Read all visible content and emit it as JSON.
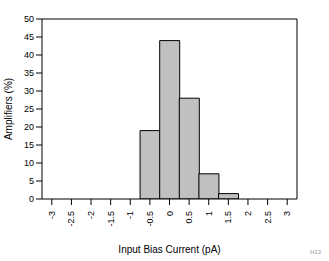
{
  "chart_data": {
    "type": "bar",
    "x_label": "Input Bias Current (pA)",
    "y_label": "Amplifiers (%)",
    "categories": [
      "-3",
      "-2.5",
      "-2",
      "-1.5",
      "-1",
      "-0.5",
      "0",
      "0.5",
      "1",
      "1.5",
      "2",
      "2.5",
      "3"
    ],
    "values": [
      0,
      0,
      0,
      0,
      0,
      19,
      44,
      28,
      7,
      1.5,
      0,
      0,
      0
    ],
    "color": "#c0c0c0",
    "ylim": [
      0,
      50
    ],
    "yticks": [
      0,
      5,
      10,
      15,
      20,
      25,
      30,
      35,
      40,
      45,
      50
    ],
    "grid": false,
    "annotation": "H13"
  }
}
